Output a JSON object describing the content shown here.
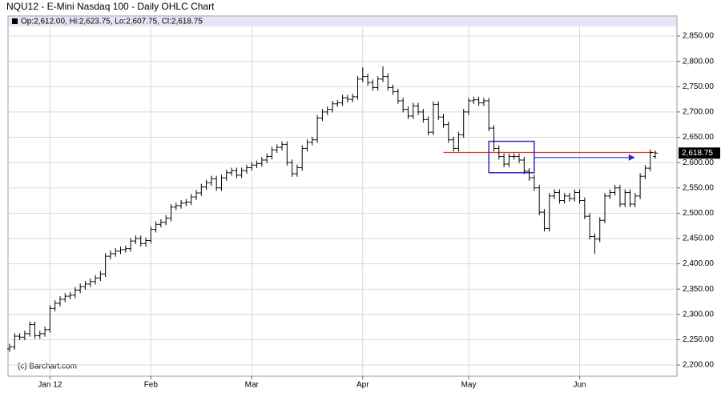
{
  "chart_data": {
    "type": "ohlc",
    "title": "NQU12 - E-Mini Nasdaq 100 - Daily OHLC Chart",
    "legend_text": "Op:2,612.00, Hi:2,623.75, Lo:2,607.75, Cl:2,618.75",
    "credit": "(c) Barchart.com",
    "last_price_label": "2,618.75",
    "color": "#000000",
    "grid": true,
    "categories": [
      null,
      null,
      null,
      null,
      null,
      null,
      null,
      null,
      "Jan 12",
      null,
      null,
      null,
      null,
      null,
      null,
      null,
      null,
      null,
      null,
      null,
      null,
      null,
      null,
      null,
      null,
      null,
      null,
      null,
      "Feb",
      null,
      null,
      null,
      null,
      null,
      null,
      null,
      null,
      null,
      null,
      null,
      null,
      null,
      null,
      null,
      null,
      null,
      null,
      null,
      "Mar",
      null,
      null,
      null,
      null,
      null,
      null,
      null,
      null,
      null,
      null,
      null,
      null,
      null,
      null,
      null,
      null,
      null,
      null,
      null,
      null,
      null,
      "Apr",
      null,
      null,
      null,
      null,
      null,
      null,
      null,
      null,
      null,
      null,
      null,
      null,
      null,
      null,
      null,
      null,
      null,
      null,
      null,
      null,
      "May",
      null,
      null,
      null,
      null,
      null,
      null,
      null,
      null,
      null,
      null,
      null,
      null,
      null,
      null,
      null,
      null,
      null,
      null,
      null,
      null,
      null,
      "Jun",
      null,
      null,
      null,
      null,
      null,
      null,
      null,
      null,
      null,
      null,
      null,
      null,
      null,
      null,
      null
    ],
    "open": [
      2232,
      2236,
      2257,
      2255,
      2262,
      2280,
      2258,
      2262,
      2270,
      2312,
      2322,
      2330,
      2336,
      2338,
      2348,
      2355,
      2360,
      2365,
      2372,
      2380,
      2415,
      2420,
      2425,
      2428,
      2430,
      2445,
      2450,
      2440,
      2446,
      2468,
      2478,
      2482,
      2490,
      2512,
      2515,
      2520,
      2522,
      2532,
      2540,
      2552,
      2560,
      2568,
      2550,
      2570,
      2580,
      2584,
      2575,
      2584,
      2590,
      2595,
      2598,
      2605,
      2612,
      2625,
      2630,
      2636,
      2600,
      2578,
      2590,
      2628,
      2640,
      2645,
      2688,
      2700,
      2705,
      2716,
      2718,
      2728,
      2725,
      2730,
      2765,
      2770,
      2758,
      2748,
      2765,
      2770,
      2748,
      2740,
      2722,
      2705,
      2692,
      2712,
      2700,
      2685,
      2660,
      2715,
      2690,
      2675,
      2645,
      2628,
      2655,
      2700,
      2722,
      2724,
      2718,
      2722,
      2668,
      2628,
      2612,
      2597,
      2612,
      2612,
      2605,
      2583,
      2570,
      2550,
      2502,
      2470,
      2534,
      2541,
      2525,
      2534,
      2529,
      2541,
      2525,
      2494,
      2454,
      2449,
      2486,
      2534,
      2541,
      2550,
      2518,
      2541,
      2518,
      2534,
      2573,
      2589,
      2612
    ],
    "high": [
      2242,
      2263,
      2263,
      2268,
      2286,
      2286,
      2268,
      2276,
      2318,
      2328,
      2336,
      2342,
      2344,
      2354,
      2361,
      2366,
      2371,
      2378,
      2386,
      2421,
      2426,
      2431,
      2434,
      2436,
      2451,
      2456,
      2456,
      2452,
      2474,
      2484,
      2488,
      2496,
      2518,
      2521,
      2526,
      2528,
      2538,
      2546,
      2558,
      2566,
      2574,
      2574,
      2576,
      2586,
      2590,
      2590,
      2590,
      2596,
      2601,
      2604,
      2611,
      2618,
      2631,
      2636,
      2642,
      2642,
      2606,
      2596,
      2634,
      2646,
      2651,
      2694,
      2706,
      2711,
      2722,
      2724,
      2734,
      2734,
      2736,
      2771,
      2788,
      2776,
      2764,
      2771,
      2790,
      2776,
      2754,
      2746,
      2728,
      2711,
      2718,
      2718,
      2706,
      2691,
      2721,
      2721,
      2696,
      2681,
      2651,
      2661,
      2706,
      2728,
      2730,
      2730,
      2728,
      2728,
      2674,
      2634,
      2618,
      2618,
      2618,
      2618,
      2611,
      2589,
      2576,
      2556,
      2508,
      2540,
      2547,
      2547,
      2540,
      2540,
      2547,
      2547,
      2531,
      2500,
      2460,
      2492,
      2540,
      2547,
      2556,
      2556,
      2547,
      2547,
      2540,
      2579,
      2595,
      2626,
      2623.75
    ],
    "low": [
      2226,
      2230,
      2249,
      2249,
      2256,
      2252,
      2252,
      2256,
      2264,
      2306,
      2316,
      2324,
      2330,
      2332,
      2342,
      2349,
      2354,
      2359,
      2366,
      2374,
      2409,
      2414,
      2419,
      2422,
      2424,
      2439,
      2434,
      2434,
      2440,
      2462,
      2472,
      2476,
      2484,
      2506,
      2509,
      2514,
      2516,
      2526,
      2534,
      2546,
      2554,
      2544,
      2544,
      2564,
      2574,
      2569,
      2569,
      2578,
      2584,
      2589,
      2592,
      2599,
      2606,
      2619,
      2624,
      2594,
      2572,
      2572,
      2584,
      2622,
      2634,
      2639,
      2682,
      2694,
      2699,
      2710,
      2712,
      2719,
      2719,
      2724,
      2759,
      2752,
      2742,
      2742,
      2759,
      2742,
      2734,
      2716,
      2699,
      2686,
      2686,
      2694,
      2679,
      2654,
      2654,
      2684,
      2669,
      2639,
      2622,
      2622,
      2649,
      2694,
      2716,
      2712,
      2712,
      2662,
      2622,
      2606,
      2591,
      2591,
      2606,
      2599,
      2577,
      2564,
      2544,
      2496,
      2464,
      2464,
      2528,
      2519,
      2519,
      2523,
      2523,
      2519,
      2488,
      2448,
      2420,
      2443,
      2480,
      2528,
      2535,
      2512,
      2512,
      2512,
      2512,
      2528,
      2567,
      2583,
      2607.75
    ],
    "close": [
      2236,
      2257,
      2255,
      2262,
      2280,
      2258,
      2262,
      2270,
      2312,
      2322,
      2330,
      2336,
      2338,
      2348,
      2355,
      2360,
      2365,
      2372,
      2380,
      2415,
      2420,
      2425,
      2428,
      2430,
      2445,
      2450,
      2440,
      2446,
      2468,
      2478,
      2482,
      2490,
      2512,
      2515,
      2520,
      2522,
      2532,
      2540,
      2552,
      2560,
      2568,
      2550,
      2570,
      2580,
      2584,
      2575,
      2584,
      2590,
      2595,
      2598,
      2605,
      2612,
      2625,
      2630,
      2636,
      2600,
      2578,
      2590,
      2628,
      2640,
      2645,
      2688,
      2700,
      2705,
      2716,
      2718,
      2728,
      2725,
      2730,
      2765,
      2770,
      2758,
      2748,
      2765,
      2770,
      2748,
      2740,
      2722,
      2705,
      2692,
      2712,
      2700,
      2685,
      2660,
      2715,
      2690,
      2675,
      2645,
      2628,
      2655,
      2700,
      2722,
      2724,
      2718,
      2722,
      2668,
      2628,
      2612,
      2597,
      2612,
      2612,
      2605,
      2583,
      2570,
      2550,
      2502,
      2470,
      2534,
      2541,
      2525,
      2534,
      2529,
      2541,
      2525,
      2494,
      2454,
      2449,
      2486,
      2534,
      2541,
      2550,
      2518,
      2541,
      2518,
      2534,
      2573,
      2589,
      2620,
      2618.75
    ],
    "ylim": [
      2178,
      2869
    ],
    "yticks": [
      {
        "value": 2200,
        "label": "2,200.00"
      },
      {
        "value": 2250,
        "label": "2,250.00"
      },
      {
        "value": 2300,
        "label": "2,300.00"
      },
      {
        "value": 2350,
        "label": "2,350.00"
      },
      {
        "value": 2400,
        "label": "2,400.00"
      },
      {
        "value": 2450,
        "label": "2,450.00"
      },
      {
        "value": 2500,
        "label": "2,500.00"
      },
      {
        "value": 2550,
        "label": "2,550.00"
      },
      {
        "value": 2600,
        "label": "2,600.00"
      },
      {
        "value": 2650,
        "label": "2,650.00"
      },
      {
        "value": 2700,
        "label": "2,700.00"
      },
      {
        "value": 2750,
        "label": "2,750.00"
      },
      {
        "value": 2800,
        "label": "2,800.00"
      },
      {
        "value": 2850,
        "label": "2,850.00"
      }
    ],
    "shapes": [
      {
        "kind": "hline",
        "y": 2620,
        "x": [
          86,
          128
        ],
        "color": "#e8362f"
      },
      {
        "kind": "rect",
        "y": [
          2580,
          2642
        ],
        "x": [
          95,
          104
        ],
        "color": "#2c2cc8"
      },
      {
        "kind": "arrow",
        "y": 2610,
        "x": [
          104,
          124
        ],
        "color": "#2c2cc8"
      }
    ]
  }
}
